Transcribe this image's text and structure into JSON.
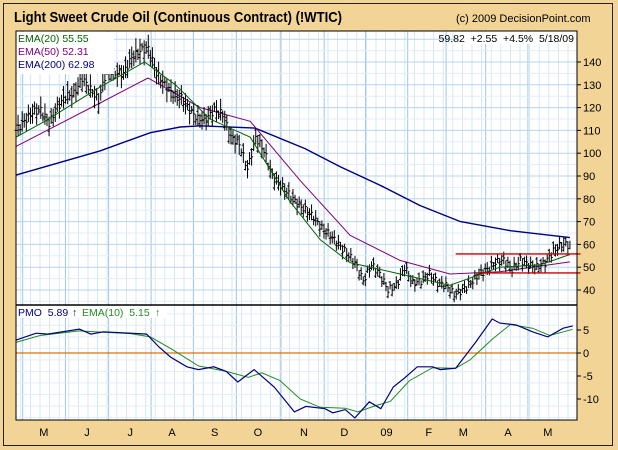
{
  "header": {
    "title": "Light Sweet Crude Oil (Continuous Contract) (!WTIC)",
    "copyright": "(c) 2009 DecisionPoint.com",
    "quote": "59.82  +2.55  +4.5%  5/18/09"
  },
  "legend": {
    "ema20": "EMA(20) 55.55",
    "ema50": "EMA(50) 52.31",
    "ema200": "EMA(200) 62.98",
    "pmo": "PMO  5.89",
    "pmo_ema": "EMA(10)  5.15",
    "arrow": "↑"
  },
  "colors": {
    "price": "#000000",
    "ema20": "#006400",
    "ema50": "#800080",
    "ema200": "#000080",
    "pmo": "#000080",
    "pmo_ema": "#228B22",
    "zero": "#E07000",
    "support": "#D00000"
  },
  "chart_data": [
    {
      "type": "line",
      "title": "Light Sweet Crude Oil (Continuous Contract) (!WTIC)",
      "xunit": "weeks since mid-April 2008",
      "x_range": [
        0,
        58
      ],
      "ylim": [
        35,
        150
      ],
      "yticks": [
        40,
        50,
        60,
        70,
        80,
        90,
        100,
        110,
        120,
        130,
        140
      ],
      "month_ticks": [
        {
          "label": "M",
          "x": 2.9
        },
        {
          "label": "J",
          "x": 7.4
        },
        {
          "label": "J",
          "x": 11.9
        },
        {
          "label": "A",
          "x": 16.25
        },
        {
          "label": "S",
          "x": 20.7
        },
        {
          "label": "O",
          "x": 25.2
        },
        {
          "label": "N",
          "x": 30
        },
        {
          "label": "D",
          "x": 34.2
        },
        {
          "label": "09",
          "x": 38.6
        },
        {
          "label": "F",
          "x": 43
        },
        {
          "label": "M",
          "x": 46.6
        },
        {
          "label": "A",
          "x": 51.25
        },
        {
          "label": "M",
          "x": 55.4
        }
      ],
      "price_close_range_x": [
        0,
        57.7
      ],
      "price_close": [
        110,
        114,
        118,
        119,
        113,
        120,
        125,
        126,
        133,
        128,
        123,
        137,
        135,
        135,
        142,
        145,
        146,
        135,
        130,
        126,
        124,
        119,
        115,
        115,
        119,
        117,
        107,
        104,
        93,
        107,
        101,
        90,
        86,
        82,
        78,
        75,
        72,
        67,
        64,
        60,
        56,
        52,
        44,
        51,
        47,
        40,
        42,
        50,
        43,
        44,
        47,
        43,
        42,
        38,
        40,
        43,
        47,
        49,
        52,
        53,
        49,
        53,
        51,
        50,
        52,
        57,
        60,
        59.82
      ],
      "series": [
        {
          "name": "EMA(20)",
          "points": [
            [
              0,
              107
            ],
            [
              3,
              114
            ],
            [
              8.75,
              129
            ],
            [
              13.4,
              140
            ],
            [
              16.6,
              130
            ],
            [
              20.2,
              115
            ],
            [
              24.4,
              107
            ],
            [
              28.5,
              79
            ],
            [
              31.7,
              62
            ],
            [
              34.8,
              52
            ],
            [
              40,
              47
            ],
            [
              45.2,
              42
            ],
            [
              50.4,
              50
            ],
            [
              54.6,
              51
            ],
            [
              57.7,
              55.55
            ]
          ]
        },
        {
          "name": "EMA(50)",
          "points": [
            [
              0,
              103
            ],
            [
              8.75,
              122
            ],
            [
              13.75,
              133
            ],
            [
              19.2,
              120
            ],
            [
              24.4,
              114
            ],
            [
              29.6,
              88
            ],
            [
              34.8,
              64
            ],
            [
              40,
              53
            ],
            [
              45.2,
              47
            ],
            [
              50.4,
              48
            ],
            [
              57.7,
              52.31
            ]
          ]
        },
        {
          "name": "EMA(200)",
          "points": [
            [
              0,
              90.4
            ],
            [
              8.75,
              101
            ],
            [
              14,
              109
            ],
            [
              17.1,
              111.5
            ],
            [
              19.2,
              112
            ],
            [
              24.9,
              111
            ],
            [
              30.1,
              102
            ],
            [
              33.8,
              94
            ],
            [
              37.9,
              86
            ],
            [
              42.1,
              77
            ],
            [
              46.3,
              70
            ],
            [
              51.5,
              66
            ],
            [
              57.7,
              62.98
            ]
          ]
        }
      ],
      "support_lines": [
        {
          "value": 55.8,
          "x": [
            45.8,
            58.8
          ]
        },
        {
          "value": 47.5,
          "x": [
            48.1,
            58.8
          ]
        }
      ]
    },
    {
      "type": "line",
      "title": "PMO",
      "x_range": [
        0,
        58
      ],
      "ylim": [
        -14.5,
        10.4
      ],
      "yticks": [
        5,
        0,
        -5,
        -10
      ],
      "zero_line": 0,
      "series": [
        {
          "name": "PMO",
          "points": [
            [
              0,
              2.8
            ],
            [
              2.1,
              4.3
            ],
            [
              3.3,
              4.1
            ],
            [
              6.6,
              5.2
            ],
            [
              7.8,
              4.1
            ],
            [
              9.1,
              4.6
            ],
            [
              12,
              4.3
            ],
            [
              13.6,
              4.1
            ],
            [
              14.9,
              1.3
            ],
            [
              16.1,
              -0.9
            ],
            [
              17.8,
              -3
            ],
            [
              19,
              -3.6
            ],
            [
              20.6,
              -3
            ],
            [
              21.9,
              -4
            ],
            [
              23.1,
              -6.3
            ],
            [
              24.8,
              -3.6
            ],
            [
              26.9,
              -7.4
            ],
            [
              29,
              -12.8
            ],
            [
              30.2,
              -11.6
            ],
            [
              32.2,
              -12.1
            ],
            [
              33,
              -13
            ],
            [
              34.3,
              -12.3
            ],
            [
              35.3,
              -14.1
            ],
            [
              36.8,
              -10.6
            ],
            [
              38,
              -12.1
            ],
            [
              39.3,
              -7.4
            ],
            [
              40.5,
              -5.4
            ],
            [
              41.8,
              -3
            ],
            [
              43.4,
              -3
            ],
            [
              44.2,
              -3.6
            ],
            [
              45.8,
              -3.3
            ],
            [
              46.7,
              -0.9
            ],
            [
              47.9,
              2.4
            ],
            [
              49.6,
              7.4
            ],
            [
              50.4,
              6.5
            ],
            [
              52.1,
              6.1
            ],
            [
              53.8,
              4.6
            ],
            [
              55.4,
              3.5
            ],
            [
              57,
              5.4
            ],
            [
              58,
              5.89
            ]
          ]
        },
        {
          "name": "EMA(10)",
          "points": [
            [
              0,
              2.3
            ],
            [
              2.5,
              3.8
            ],
            [
              6.6,
              4.8
            ],
            [
              9.1,
              4.5
            ],
            [
              12,
              4.2
            ],
            [
              14,
              3.5
            ],
            [
              16.25,
              0.8
            ],
            [
              19,
              -2.8
            ],
            [
              21.9,
              -4
            ],
            [
              24.2,
              -5.3
            ],
            [
              25.6,
              -4.3
            ],
            [
              27.5,
              -6
            ],
            [
              29.6,
              -10
            ],
            [
              31.7,
              -11.8
            ],
            [
              34.3,
              -12
            ],
            [
              35.6,
              -12.8
            ],
            [
              37.4,
              -11.5
            ],
            [
              39,
              -10.5
            ],
            [
              41,
              -6
            ],
            [
              43.4,
              -3.2
            ],
            [
              45.8,
              -3.3
            ],
            [
              47.3,
              -1.5
            ],
            [
              49.6,
              3
            ],
            [
              51.5,
              6.2
            ],
            [
              53.8,
              5.4
            ],
            [
              55.6,
              3.8
            ],
            [
              58,
              5.15
            ]
          ]
        }
      ]
    }
  ]
}
